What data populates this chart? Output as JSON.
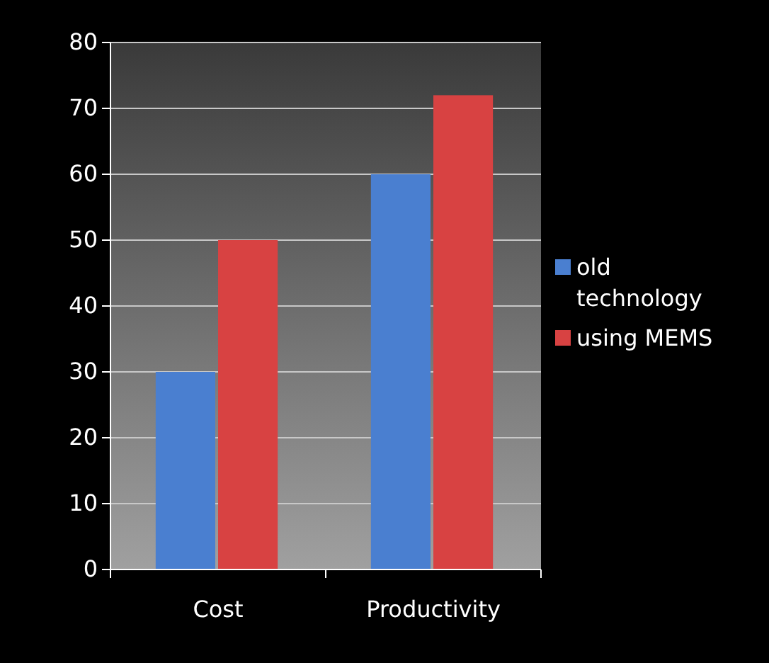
{
  "chart_data": {
    "type": "bar",
    "categories": [
      "Cost",
      "Productivity"
    ],
    "series": [
      {
        "name": "old technology",
        "color": "#4a7fd0",
        "values": [
          30,
          60
        ]
      },
      {
        "name": "using MEMS",
        "color": "#d84242",
        "values": [
          50,
          72
        ]
      }
    ],
    "ylim": [
      0,
      80
    ],
    "yticks": [
      0,
      10,
      20,
      30,
      40,
      50,
      60,
      70,
      80
    ],
    "grid": "y",
    "legend": "right"
  }
}
